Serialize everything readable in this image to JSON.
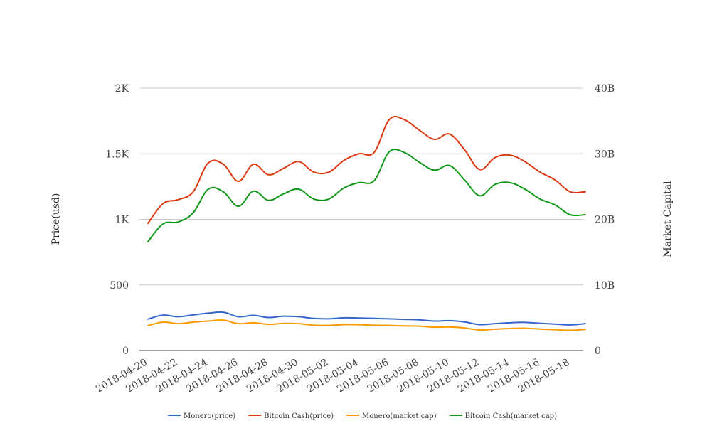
{
  "chart_data": {
    "type": "line",
    "x_dates": [
      "2018-04-20",
      "2018-04-21",
      "2018-04-22",
      "2018-04-23",
      "2018-04-24",
      "2018-04-25",
      "2018-04-26",
      "2018-04-27",
      "2018-04-28",
      "2018-04-29",
      "2018-04-30",
      "2018-05-01",
      "2018-05-02",
      "2018-05-03",
      "2018-05-04",
      "2018-05-05",
      "2018-05-06",
      "2018-05-07",
      "2018-05-08",
      "2018-05-09",
      "2018-05-10",
      "2018-05-11",
      "2018-05-12",
      "2018-05-13",
      "2018-05-14",
      "2018-05-15",
      "2018-05-16",
      "2018-05-17",
      "2018-05-18",
      "2018-05-19"
    ],
    "x_tick_labels": [
      "2018-04-20",
      "2018-04-22",
      "2018-04-24",
      "2018-04-26",
      "2018-04-28",
      "2018-04-30",
      "2018-05-02",
      "2018-05-04",
      "2018-05-06",
      "2018-05-08",
      "2018-05-10",
      "2018-05-12",
      "2018-05-14",
      "2018-05-16",
      "2018-05-18"
    ],
    "y_left": {
      "label": "Price(usd)",
      "range": [
        0,
        2000
      ],
      "ticks": [
        0,
        500,
        1000,
        1500,
        2000
      ],
      "tick_labels": [
        "0",
        "500",
        "1K",
        "1.5K",
        "2K"
      ]
    },
    "y_right": {
      "label": "Market Capital",
      "range": [
        0,
        40000000000
      ],
      "ticks": [
        0,
        10000000000,
        20000000000,
        30000000000,
        40000000000
      ],
      "tick_labels": [
        "0",
        "10B",
        "20B",
        "30B",
        "40B"
      ]
    },
    "grid": true,
    "legend_position": "bottom",
    "series": [
      {
        "name": "Monero(price)",
        "axis": "left",
        "color": "#3366cc",
        "values": [
          240,
          270,
          258,
          272,
          285,
          292,
          258,
          268,
          252,
          262,
          258,
          245,
          242,
          250,
          248,
          245,
          242,
          238,
          234,
          225,
          228,
          218,
          198,
          205,
          212,
          215,
          208,
          202,
          196,
          205
        ]
      },
      {
        "name": "Bitcoin Cash(price)",
        "axis": "left",
        "color": "#dc3912",
        "values": [
          970,
          1120,
          1150,
          1210,
          1430,
          1420,
          1290,
          1420,
          1340,
          1390,
          1440,
          1360,
          1360,
          1450,
          1500,
          1510,
          1760,
          1760,
          1680,
          1610,
          1650,
          1530,
          1380,
          1470,
          1490,
          1440,
          1360,
          1300,
          1210,
          1210
        ]
      },
      {
        "name": "Monero(market cap)",
        "axis": "right",
        "color": "#ff9900",
        "values": [
          3800000000,
          4340000000,
          4100000000,
          4340000000,
          4500000000,
          4640000000,
          4100000000,
          4240000000,
          4000000000,
          4140000000,
          4100000000,
          3860000000,
          3840000000,
          3960000000,
          3940000000,
          3860000000,
          3840000000,
          3760000000,
          3720000000,
          3560000000,
          3600000000,
          3440000000,
          3140000000,
          3260000000,
          3360000000,
          3400000000,
          3280000000,
          3180000000,
          3100000000,
          3220000000
        ]
      },
      {
        "name": "Bitcoin Cash(market cap)",
        "axis": "right",
        "color": "#109618",
        "values": [
          16600000000,
          19300000000,
          19600000000,
          21000000000,
          24600000000,
          24200000000,
          22000000000,
          24300000000,
          22900000000,
          23900000000,
          24600000000,
          23100000000,
          23100000000,
          24800000000,
          25600000000,
          25900000000,
          30300000000,
          30200000000,
          28700000000,
          27500000000,
          28200000000,
          26000000000,
          23600000000,
          25300000000,
          25600000000,
          24600000000,
          23100000000,
          22200000000,
          20700000000,
          20700000000
        ]
      }
    ]
  }
}
